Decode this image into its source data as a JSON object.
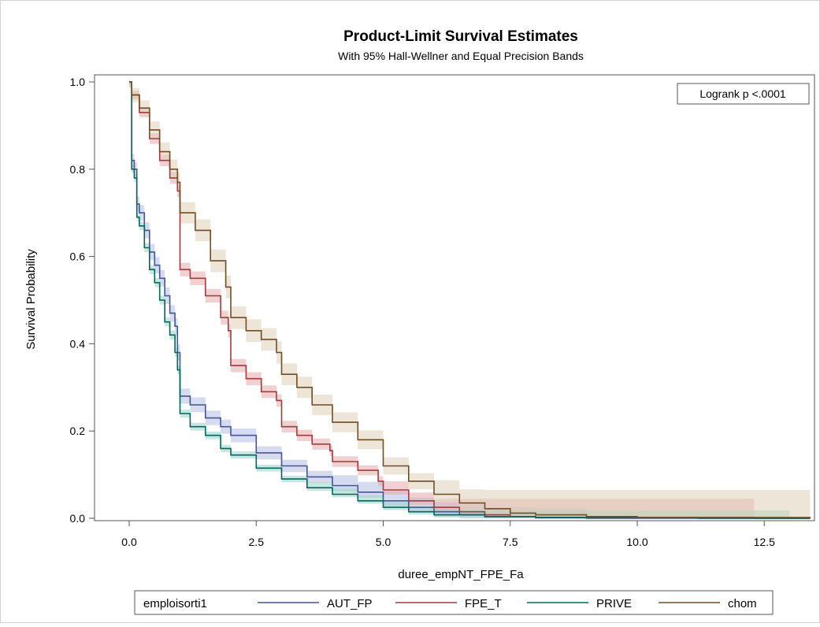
{
  "chart_data": {
    "type": "line",
    "title": "Product-Limit Survival Estimates",
    "subtitle": "With 95% Hall-Wellner and Equal Precision Bands",
    "xlabel": "duree_empNT_FPE_Fa",
    "ylabel": "Survival Probability",
    "xlim": [
      -0.7,
      13.5
    ],
    "ylim": [
      0.0,
      1.0
    ],
    "x_ticks": [
      "0.0",
      "2.5",
      "5.0",
      "7.5",
      "10.0",
      "12.5"
    ],
    "x_tick_values": [
      0,
      2.5,
      5,
      7.5,
      10,
      12.5
    ],
    "y_ticks": [
      "0.0",
      "0.2",
      "0.4",
      "0.6",
      "0.8",
      "1.0"
    ],
    "y_tick_values": [
      0,
      0.2,
      0.4,
      0.6,
      0.8,
      1.0
    ],
    "grid": false,
    "annotation": "Logrank p <.0001",
    "legend_title": "emploisorti1",
    "legend_position": "bottom",
    "series": [
      {
        "name": "AUT_FP",
        "color": "#445694",
        "band_color": "#b4bde3",
        "points": [
          [
            0,
            1.0
          ],
          [
            0.05,
            0.82
          ],
          [
            0.1,
            0.8
          ],
          [
            0.15,
            0.72
          ],
          [
            0.2,
            0.7
          ],
          [
            0.3,
            0.66
          ],
          [
            0.4,
            0.61
          ],
          [
            0.5,
            0.58
          ],
          [
            0.6,
            0.55
          ],
          [
            0.7,
            0.51
          ],
          [
            0.8,
            0.47
          ],
          [
            0.9,
            0.44
          ],
          [
            0.95,
            0.38
          ],
          [
            1.0,
            0.28
          ],
          [
            1.2,
            0.26
          ],
          [
            1.5,
            0.23
          ],
          [
            1.8,
            0.21
          ],
          [
            2.0,
            0.19
          ],
          [
            2.5,
            0.15
          ],
          [
            3.0,
            0.12
          ],
          [
            3.5,
            0.095
          ],
          [
            4.0,
            0.075
          ],
          [
            4.5,
            0.06
          ],
          [
            5.0,
            0.04
          ],
          [
            5.5,
            0.025
          ],
          [
            6.0,
            0.015
          ],
          [
            6.5,
            0.008
          ],
          [
            7.0,
            0.004
          ],
          [
            8.0,
            0.001
          ],
          [
            9.0,
            0.0
          ]
        ],
        "band_half_width": 0.018,
        "band_end": 9.0
      },
      {
        "name": "FPE_T",
        "color": "#a23a3e",
        "band_color": "#e6a9ab",
        "points": [
          [
            0,
            1.0
          ],
          [
            0.05,
            0.97
          ],
          [
            0.2,
            0.93
          ],
          [
            0.4,
            0.87
          ],
          [
            0.6,
            0.82
          ],
          [
            0.8,
            0.78
          ],
          [
            0.95,
            0.75
          ],
          [
            1.0,
            0.57
          ],
          [
            1.2,
            0.55
          ],
          [
            1.5,
            0.51
          ],
          [
            1.8,
            0.46
          ],
          [
            1.95,
            0.43
          ],
          [
            2.0,
            0.35
          ],
          [
            2.3,
            0.32
          ],
          [
            2.6,
            0.29
          ],
          [
            2.9,
            0.27
          ],
          [
            3.0,
            0.21
          ],
          [
            3.3,
            0.19
          ],
          [
            3.6,
            0.17
          ],
          [
            3.95,
            0.155
          ],
          [
            4.0,
            0.13
          ],
          [
            4.5,
            0.11
          ],
          [
            4.9,
            0.085
          ],
          [
            5.0,
            0.065
          ],
          [
            5.5,
            0.04
          ],
          [
            6.0,
            0.025
          ],
          [
            6.5,
            0.015
          ],
          [
            7.0,
            0.008
          ],
          [
            7.5,
            0.004
          ],
          [
            8.0,
            0.002
          ],
          [
            12.3,
            0.0
          ]
        ],
        "band_half_width": 0.015,
        "band_end": 12.3,
        "tail_band_top": 0.045
      },
      {
        "name": "PRIVE",
        "color": "#01665e",
        "band_color": "#9ad3c7",
        "points": [
          [
            0,
            1.0
          ],
          [
            0.05,
            0.8
          ],
          [
            0.1,
            0.78
          ],
          [
            0.15,
            0.69
          ],
          [
            0.2,
            0.67
          ],
          [
            0.3,
            0.62
          ],
          [
            0.4,
            0.57
          ],
          [
            0.5,
            0.54
          ],
          [
            0.6,
            0.5
          ],
          [
            0.7,
            0.45
          ],
          [
            0.8,
            0.42
          ],
          [
            0.9,
            0.38
          ],
          [
            0.95,
            0.34
          ],
          [
            1.0,
            0.24
          ],
          [
            1.2,
            0.21
          ],
          [
            1.5,
            0.19
          ],
          [
            1.8,
            0.16
          ],
          [
            2.0,
            0.145
          ],
          [
            2.5,
            0.115
          ],
          [
            3.0,
            0.09
          ],
          [
            3.5,
            0.07
          ],
          [
            4.0,
            0.055
          ],
          [
            4.5,
            0.04
          ],
          [
            5.0,
            0.025
          ],
          [
            5.5,
            0.015
          ],
          [
            6.0,
            0.008
          ],
          [
            7.0,
            0.004
          ],
          [
            8.0,
            0.002
          ],
          [
            11.2,
            0.0
          ]
        ],
        "band_half_width": 0.01,
        "band_end": 13.0,
        "tail_band_top": 0.018
      },
      {
        "name": "chom",
        "color": "#714d25",
        "band_color": "#dfcfb8",
        "points": [
          [
            0,
            1.0
          ],
          [
            0.05,
            0.97
          ],
          [
            0.2,
            0.94
          ],
          [
            0.4,
            0.89
          ],
          [
            0.6,
            0.84
          ],
          [
            0.8,
            0.8
          ],
          [
            0.95,
            0.77
          ],
          [
            1.0,
            0.7
          ],
          [
            1.3,
            0.66
          ],
          [
            1.6,
            0.59
          ],
          [
            1.9,
            0.53
          ],
          [
            2.0,
            0.46
          ],
          [
            2.3,
            0.43
          ],
          [
            2.6,
            0.41
          ],
          [
            2.9,
            0.38
          ],
          [
            3.0,
            0.33
          ],
          [
            3.3,
            0.3
          ],
          [
            3.6,
            0.26
          ],
          [
            4.0,
            0.22
          ],
          [
            4.5,
            0.18
          ],
          [
            5.0,
            0.12
          ],
          [
            5.5,
            0.085
          ],
          [
            6.0,
            0.055
          ],
          [
            6.5,
            0.035
          ],
          [
            7.0,
            0.022
          ],
          [
            7.5,
            0.012
          ],
          [
            8.0,
            0.008
          ],
          [
            9.0,
            0.004
          ],
          [
            10.0,
            0.002
          ],
          [
            13.4,
            0.0
          ]
        ],
        "band_half_width": 0.025,
        "band_end": 13.4,
        "tail_band_top": 0.065
      }
    ]
  }
}
